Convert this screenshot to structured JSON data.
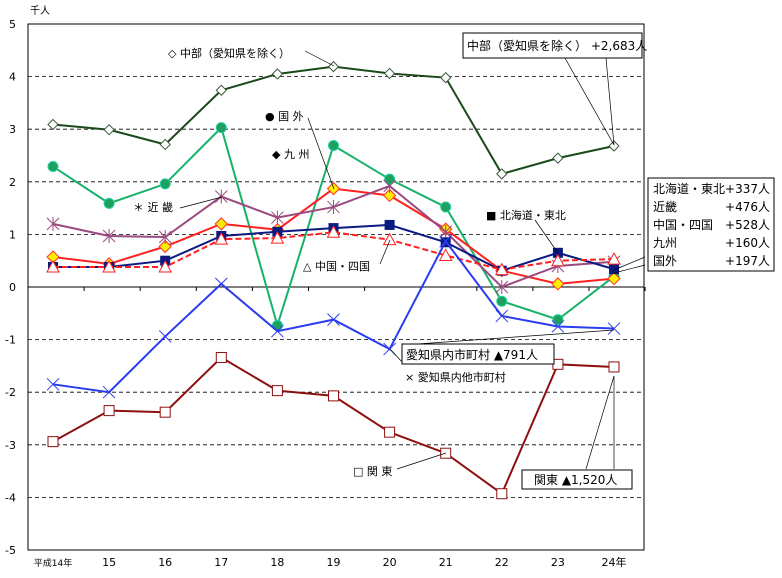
{
  "chart_data": {
    "type": "line",
    "ylabel": "千人",
    "ylim": [
      -5,
      5
    ],
    "yticks": [
      5,
      4,
      3,
      2,
      1,
      0,
      -1,
      -2,
      -3,
      -4,
      -5
    ],
    "grid": "horizontal dashed",
    "categories": [
      "平成14年",
      "15",
      "16",
      "17",
      "18",
      "19",
      "20",
      "21",
      "22",
      "23",
      "24年"
    ],
    "series": [
      {
        "name": "中部（愛知県を除く）",
        "color": "#1a4a1a",
        "marker": "diamond-open",
        "dash": false,
        "values": [
          3.09,
          2.99,
          2.71,
          3.74,
          4.05,
          4.19,
          4.06,
          3.98,
          2.15,
          2.45,
          2.68
        ]
      },
      {
        "name": "国 外",
        "color": "#17b26a",
        "marker": "circle",
        "dash": false,
        "values": [
          2.29,
          1.59,
          1.96,
          3.03,
          -0.73,
          2.69,
          2.05,
          1.52,
          -0.27,
          -0.62,
          0.2
        ]
      },
      {
        "name": "九 州",
        "color": "#ff2020",
        "marker": "diamond-yellow",
        "dash": false,
        "values": [
          0.57,
          0.44,
          0.77,
          1.2,
          1.09,
          1.87,
          1.74,
          1.1,
          0.31,
          0.06,
          0.16
        ]
      },
      {
        "name": "近 畿",
        "color": "#9a4a80",
        "marker": "asterisk",
        "dash": false,
        "values": [
          1.2,
          0.97,
          0.95,
          1.72,
          1.32,
          1.52,
          1.92,
          1.05,
          0.0,
          0.4,
          0.48
        ]
      },
      {
        "name": "北海道・東北",
        "color": "#0a1a80",
        "marker": "square",
        "dash": false,
        "values": [
          0.38,
          0.38,
          0.5,
          0.97,
          1.05,
          1.12,
          1.18,
          0.85,
          0.31,
          0.65,
          0.34
        ]
      },
      {
        "name": "中国・四国",
        "color": "#ff2020",
        "marker": "triangle-open",
        "dash": true,
        "values": [
          0.38,
          0.38,
          0.38,
          0.91,
          0.93,
          1.04,
          0.9,
          0.6,
          0.33,
          0.5,
          0.53
        ]
      },
      {
        "name": "愛知県内他市町村",
        "color": "#2a3cf0",
        "marker": "x",
        "dash": false,
        "values": [
          -1.85,
          -2.0,
          -0.94,
          0.06,
          -0.84,
          -0.62,
          -1.18,
          0.87,
          -0.55,
          -0.75,
          -0.79
        ]
      },
      {
        "name": "関 東",
        "color": "#8b1010",
        "marker": "square-open",
        "dash": false,
        "values": [
          -2.94,
          -2.35,
          -2.38,
          -1.34,
          -1.97,
          -2.07,
          -2.76,
          -3.16,
          -3.93,
          -1.47,
          -1.52
        ]
      }
    ],
    "legend_labels": {
      "chubu": "◇ 中部（愛知県を除く）",
      "kokugai": "● 国 外",
      "kyushu": "◆ 九 州",
      "kinki": "＊ 近 畿",
      "hokkaido": "■ 北海道・東北",
      "chugoku": "△ 中国・四国",
      "aichi": "× 愛知県内他市町村",
      "kanto": "□ 関 東"
    },
    "annotations": {
      "chubu_box": "中部（愛知県を除く） +2,683人",
      "aichi_box": "愛知県内市町村 ▲791人",
      "kanto_box": "関東 ▲1,520人",
      "multi_box": [
        {
          "label": "北海道・東北",
          "value": "+337人"
        },
        {
          "label": "近畿",
          "value": "+476人"
        },
        {
          "label": "中国・四国",
          "value": "+528人"
        },
        {
          "label": "九州",
          "value": "+160人"
        },
        {
          "label": "国外",
          "value": "+197人"
        }
      ]
    }
  }
}
